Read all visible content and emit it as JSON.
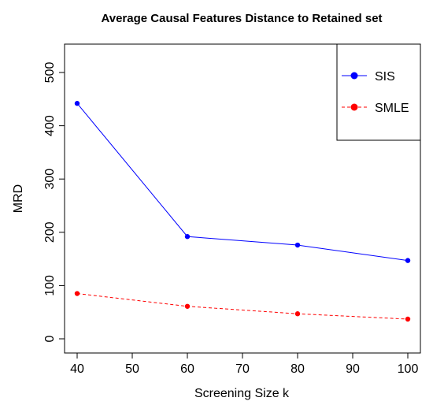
{
  "chart_data": {
    "type": "line",
    "title": "Average Causal Features Distance to Retained set",
    "xlabel": "Screening Size k",
    "ylabel": "MRD",
    "x": [
      40,
      60,
      80,
      100
    ],
    "xlim": [
      40,
      100
    ],
    "ylim": [
      0,
      500
    ],
    "xticks": [
      40,
      50,
      60,
      70,
      80,
      90,
      100
    ],
    "yticks": [
      0,
      100,
      200,
      300,
      400,
      500
    ],
    "grid": false,
    "legend_position": "top-right",
    "series": [
      {
        "name": "SIS",
        "values": [
          442,
          192,
          176,
          147
        ],
        "color": "#0000ff",
        "line_style": "solid"
      },
      {
        "name": "SMLE",
        "values": [
          85,
          61,
          47,
          37
        ],
        "color": "#ff0000",
        "line_style": "dashed"
      }
    ]
  }
}
